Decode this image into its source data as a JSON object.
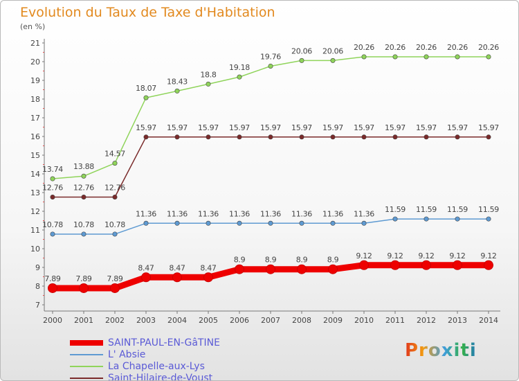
{
  "chart": {
    "title": "Evolution du Taux de Taxe d'Habitation",
    "subtitle": "(en %)",
    "logo": "Proxiti"
  },
  "chart_data": {
    "type": "line",
    "title": "Evolution du Taux de Taxe d'Habitation",
    "ylabel": "(en %)",
    "xlabel": "",
    "ylim": [
      7,
      21
    ],
    "yticks": [
      7,
      8,
      9,
      10,
      11,
      12,
      13,
      14,
      15,
      16,
      17,
      18,
      19,
      20,
      21
    ],
    "grid": false,
    "legend_position": "bottom-left",
    "x": [
      2000,
      2001,
      2002,
      2003,
      2004,
      2005,
      2006,
      2007,
      2008,
      2009,
      2010,
      2011,
      2012,
      2013,
      2014
    ],
    "series": [
      {
        "name": "SAINT-PAUL-EN-GâTINE",
        "color": "#ee0000",
        "values": [
          7.89,
          7.89,
          7.89,
          8.47,
          8.47,
          8.47,
          8.9,
          8.9,
          8.9,
          8.9,
          9.12,
          9.12,
          9.12,
          9.12,
          9.12
        ],
        "labels": [
          "7.89",
          "7.89",
          "7.89",
          "8.47",
          "8.47",
          "8.47",
          "8.9",
          "8.9",
          "8.9",
          "8.9",
          "9.12",
          "9.12",
          "9.12",
          "9.12",
          "9.12"
        ]
      },
      {
        "name": "L' Absie",
        "color": "#5e9ad2",
        "values": [
          10.78,
          10.78,
          10.78,
          11.36,
          11.36,
          11.36,
          11.36,
          11.36,
          11.36,
          11.36,
          11.36,
          11.59,
          11.59,
          11.59,
          11.59
        ],
        "labels": [
          "10.78",
          "10.78",
          "10.78",
          "11.36",
          "11.36",
          "11.36",
          "11.36",
          "11.36",
          "11.36",
          "11.36",
          "11.36",
          "11.59",
          "11.59",
          "11.59",
          "11.59"
        ]
      },
      {
        "name": "La Chapelle-aux-Lys",
        "color": "#8fd45a",
        "values": [
          13.74,
          13.88,
          14.57,
          18.07,
          18.43,
          18.8,
          19.18,
          19.76,
          20.06,
          20.06,
          20.26,
          20.26,
          20.26,
          20.26,
          20.26
        ],
        "labels": [
          "13.74",
          "13.88",
          "14.57",
          "18.07",
          "18.43",
          "18.8",
          "19.18",
          "19.76",
          "20.06",
          "20.06",
          "20.26",
          "20.26",
          "20.26",
          "20.26",
          "20.26"
        ]
      },
      {
        "name": "Saint-Hilaire-de-Voust",
        "color": "#7a2a2a",
        "values": [
          12.76,
          12.76,
          12.76,
          15.97,
          15.97,
          15.97,
          15.97,
          15.97,
          15.97,
          15.97,
          15.97,
          15.97,
          15.97,
          15.97,
          15.97
        ],
        "labels": [
          "12.76",
          "12.76",
          "12.76",
          "15.97",
          "15.97",
          "15.97",
          "15.97",
          "15.97",
          "15.97",
          "15.97",
          "15.97",
          "15.97",
          "15.97",
          "15.97",
          "15.97"
        ]
      }
    ]
  }
}
